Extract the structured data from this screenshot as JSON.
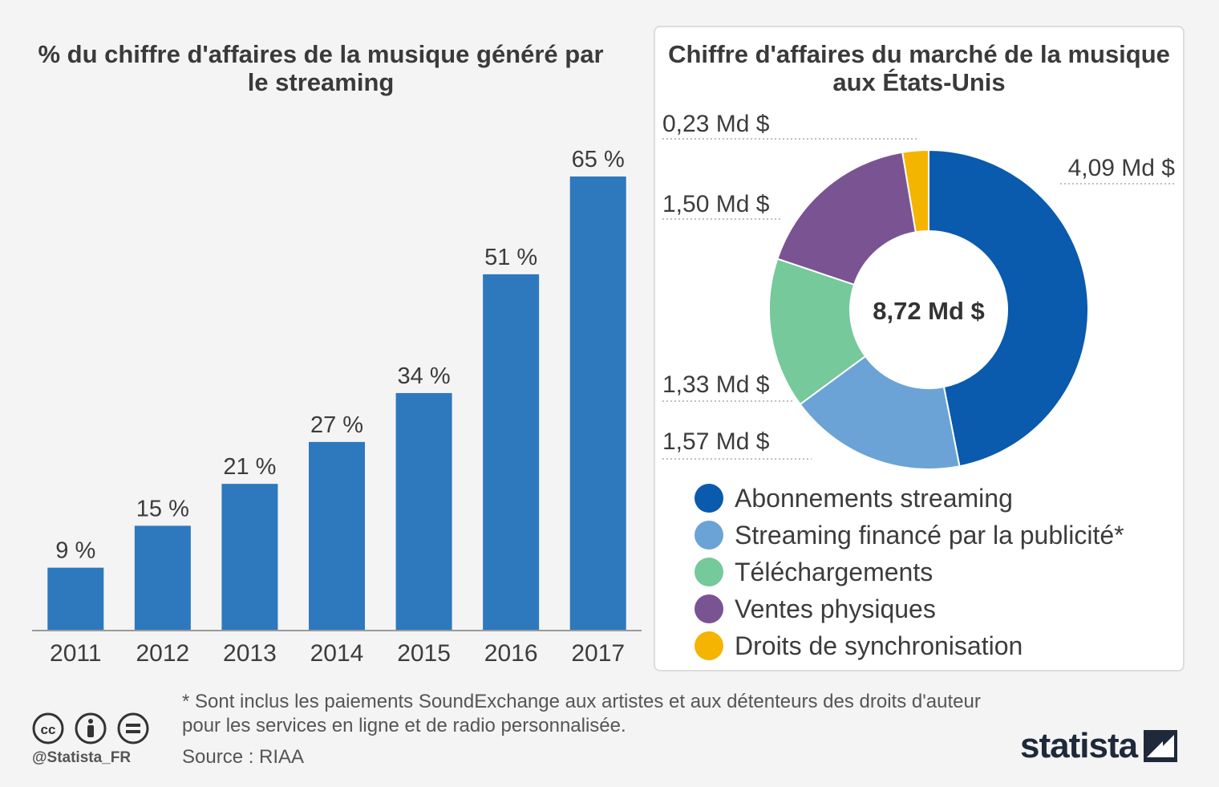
{
  "chart_data": [
    {
      "type": "bar",
      "title": "% du chiffre d'affaires de la musique généré par le streaming",
      "categories": [
        "2011",
        "2012",
        "2013",
        "2014",
        "2015",
        "2016",
        "2017"
      ],
      "values": [
        9,
        15,
        21,
        27,
        34,
        51,
        65
      ],
      "value_labels": [
        "9 %",
        "15 %",
        "21 %",
        "27 %",
        "34 %",
        "51 %",
        "65 %"
      ],
      "unit": "%",
      "ylim": [
        0,
        70
      ],
      "grid": false,
      "xlabel": "",
      "ylabel": ""
    },
    {
      "type": "pie",
      "title": "Chiffre d'affaires du marché de la musique aux États-Unis",
      "center_label": "8,72 Md $",
      "total": 8.72,
      "slices": [
        {
          "name": "Abonnements streaming",
          "value": 4.09,
          "label": "4,09 Md $",
          "color": "#0a5aad"
        },
        {
          "name": "Streaming financé par la publicité*",
          "value": 1.57,
          "label": "1,57 Md $",
          "color": "#6ba3d6"
        },
        {
          "name": "Téléchargements",
          "value": 1.33,
          "label": "1,33 Md $",
          "color": "#75c99a"
        },
        {
          "name": "Ventes physiques",
          "value": 1.5,
          "label": "1,50 Md $",
          "color": "#7a5393"
        },
        {
          "name": "Droits de synchronisation",
          "value": 0.23,
          "label": "0,23 Md $",
          "color": "#f5b400"
        }
      ]
    }
  ],
  "left_title": "% du chiffre d'affaires de la musique généré par le streaming",
  "right_title": "Chiffre d'affaires du marché de la musique aux États-Unis",
  "legend": [
    {
      "label": "Abonnements streaming",
      "color": "#0a5aad"
    },
    {
      "label": "Streaming financé par la publicité*",
      "color": "#6ba3d6"
    },
    {
      "label": "Téléchargements",
      "color": "#75c99a"
    },
    {
      "label": "Ventes physiques",
      "color": "#7a5393"
    },
    {
      "label": "Droits de synchronisation",
      "color": "#f5b400"
    }
  ],
  "footnote": "* Sont inclus les paiements SoundExchange aux artistes et aux détenteurs des droits d'auteur pour les services en ligne et de radio personnalisée.",
  "source": "Source : RIAA",
  "handle": "@Statista_FR",
  "logo": "statista",
  "colors": {
    "bar": "#2e78be",
    "axis": "#9a9a9a",
    "text": "#3c3c3c"
  }
}
